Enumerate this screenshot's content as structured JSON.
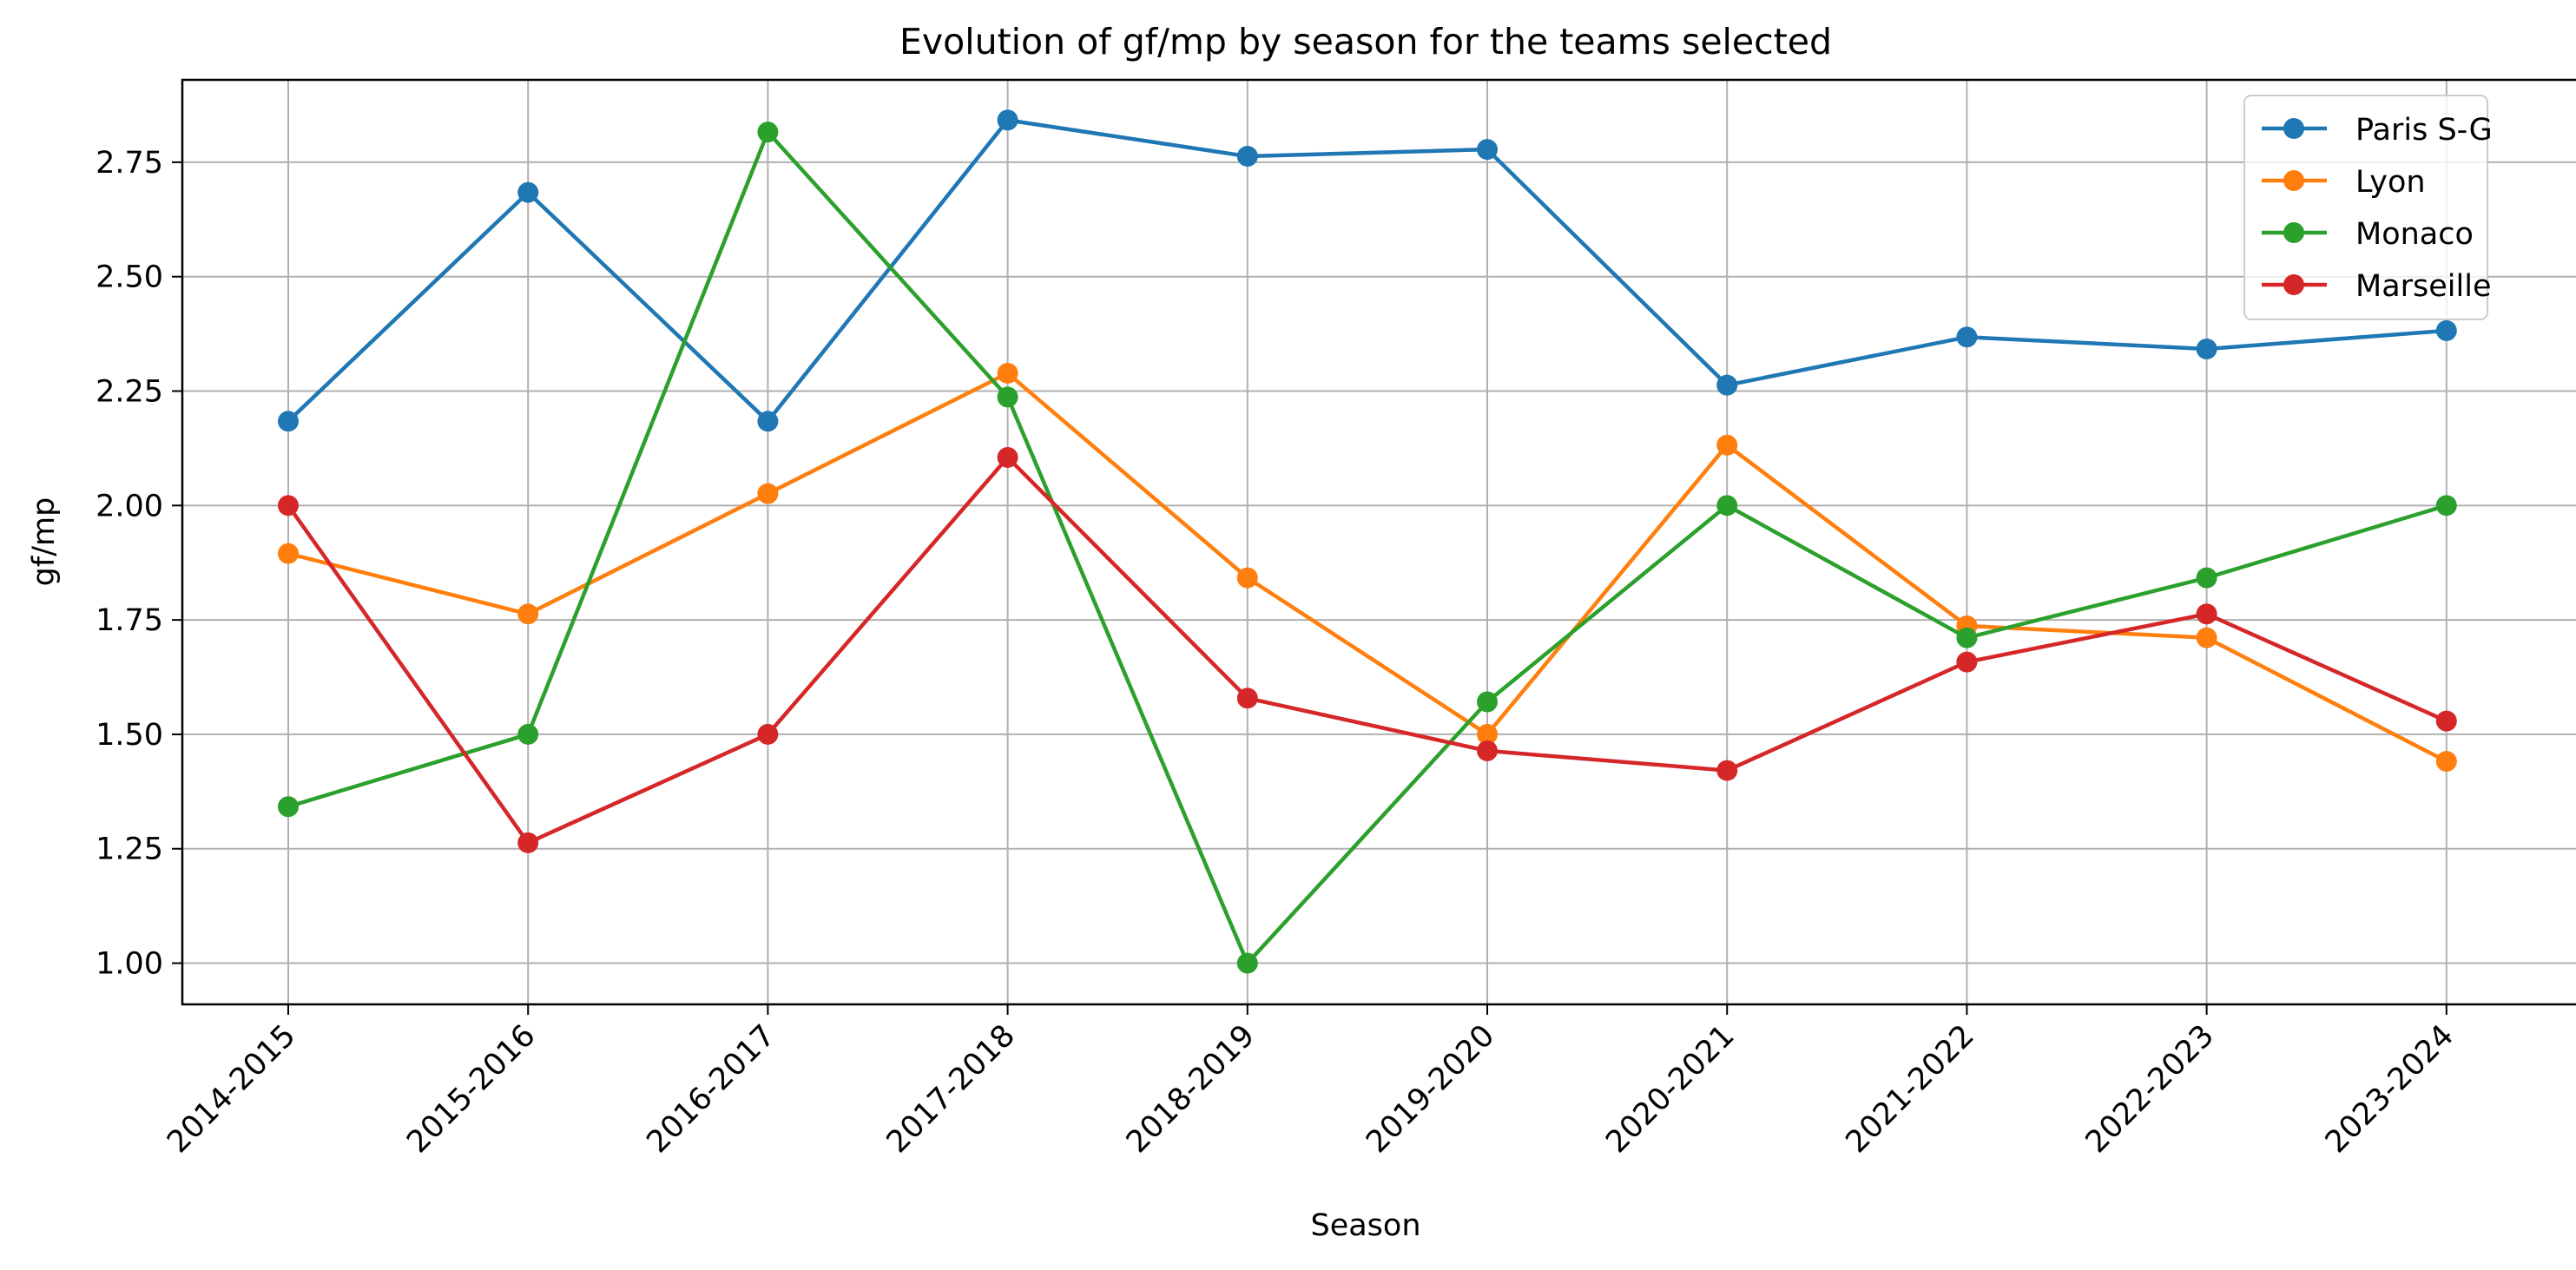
{
  "chart_data": {
    "type": "line",
    "title": "Evolution of gf/mp by season for the teams selected",
    "xlabel": "Season",
    "ylabel": "gf/mp",
    "categories": [
      "2014-2015",
      "2015-2016",
      "2016-2017",
      "2017-2018",
      "2018-2019",
      "2019-2020",
      "2020-2021",
      "2021-2022",
      "2022-2023",
      "2023-2024"
    ],
    "ylim": [
      0.91,
      2.93
    ],
    "yticks": [
      "1.00",
      "1.25",
      "1.50",
      "1.75",
      "2.00",
      "2.25",
      "2.50",
      "2.75"
    ],
    "grid": true,
    "legend_position": "top-right",
    "series": [
      {
        "name": "Paris S-G",
        "color": "#1f77b4",
        "values": [
          2.184,
          2.684,
          2.184,
          2.842,
          2.763,
          2.778,
          2.263,
          2.368,
          2.342,
          2.382
        ]
      },
      {
        "name": "Lyon",
        "color": "#ff7f0e",
        "values": [
          1.895,
          1.763,
          2.026,
          2.289,
          1.842,
          1.5,
          2.132,
          1.737,
          1.711,
          1.441
        ]
      },
      {
        "name": "Monaco",
        "color": "#2ca02c",
        "values": [
          1.342,
          1.5,
          2.816,
          2.237,
          1.0,
          1.571,
          2.0,
          1.711,
          1.842,
          2.0
        ]
      },
      {
        "name": "Marseille",
        "color": "#d62728",
        "values": [
          2.0,
          1.263,
          1.5,
          2.105,
          1.579,
          1.464,
          1.421,
          1.658,
          1.763,
          1.529
        ]
      }
    ]
  }
}
